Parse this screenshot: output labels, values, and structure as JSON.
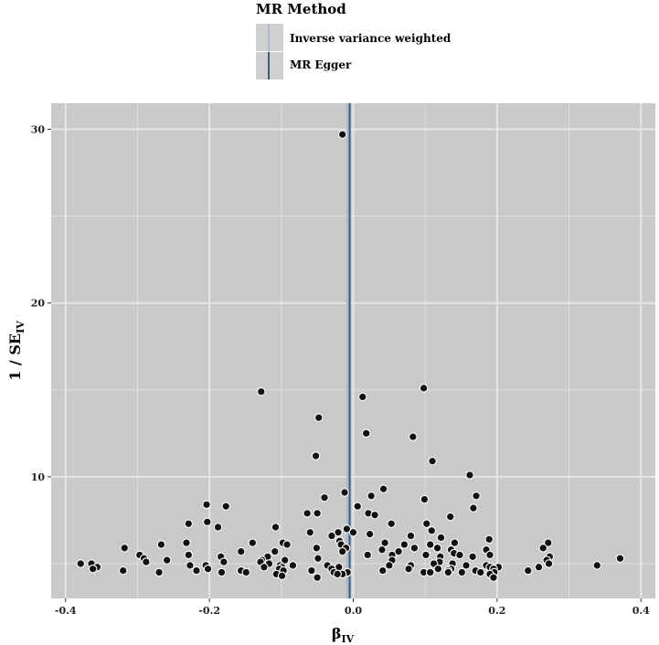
{
  "chart_data": {
    "type": "scatter",
    "title": "",
    "xlabel": "β",
    "xlabel_subscript": "IV",
    "ylabel": "1 / SE",
    "ylabel_subscript": "IV",
    "xlim": [
      -0.42,
      0.42
    ],
    "ylim": [
      3,
      31.5
    ],
    "x_ticks": [
      -0.4,
      -0.2,
      0.0,
      0.2,
      0.4
    ],
    "x_tick_labels": [
      "-0.4",
      "-0.2",
      "0.0",
      "0.2",
      "0.4"
    ],
    "y_ticks": [
      10,
      20,
      30
    ],
    "y_tick_labels": [
      "10",
      "20",
      "30"
    ],
    "grid": true,
    "legend": {
      "title": "MR Method",
      "placement": "top",
      "entries": [
        {
          "label": "Inverse variance weighted",
          "color": "#a9bdd4"
        },
        {
          "label": "MR Egger",
          "color": "#3b5a7e"
        }
      ]
    },
    "lines": [
      {
        "name": "Inverse variance weighted",
        "type": "vertical",
        "x": -0.008,
        "color": "#a9bdd4"
      },
      {
        "name": "MR Egger",
        "type": "vertical",
        "x": -0.005,
        "color": "#3b5a7e"
      }
    ],
    "colors": {
      "panel": "#c9c9c9",
      "grid": "#e6e6e6",
      "point": "#111111",
      "point_outline": "#f5f5f5"
    },
    "series": [
      {
        "points": [
          [
            -0.015,
            29.7
          ],
          [
            -0.128,
            14.9
          ],
          [
            0.098,
            15.1
          ],
          [
            0.013,
            14.6
          ],
          [
            -0.048,
            13.4
          ],
          [
            0.018,
            12.5
          ],
          [
            0.083,
            12.3
          ],
          [
            -0.052,
            11.2
          ],
          [
            0.11,
            10.9
          ],
          [
            0.162,
            10.1
          ],
          [
            0.042,
            9.3
          ],
          [
            -0.012,
            9.1
          ],
          [
            0.025,
            8.9
          ],
          [
            0.171,
            8.9
          ],
          [
            -0.04,
            8.8
          ],
          [
            0.099,
            8.7
          ],
          [
            -0.204,
            8.4
          ],
          [
            -0.177,
            8.3
          ],
          [
            0.006,
            8.3
          ],
          [
            0.167,
            8.2
          ],
          [
            -0.064,
            7.9
          ],
          [
            -0.05,
            7.9
          ],
          [
            0.021,
            7.9
          ],
          [
            0.03,
            7.8
          ],
          [
            0.135,
            7.7
          ],
          [
            -0.203,
            7.4
          ],
          [
            -0.229,
            7.3
          ],
          [
            0.053,
            7.3
          ],
          [
            0.102,
            7.3
          ],
          [
            -0.188,
            7.1
          ],
          [
            -0.108,
            7.1
          ],
          [
            -0.009,
            7.0
          ],
          [
            0.109,
            6.9
          ],
          [
            -0.06,
            6.8
          ],
          [
            -0.021,
            6.8
          ],
          [
            0.0,
            6.8
          ],
          [
            0.023,
            6.7
          ],
          [
            -0.03,
            6.6
          ],
          [
            0.08,
            6.6
          ],
          [
            0.122,
            6.5
          ],
          [
            0.189,
            6.4
          ],
          [
            -0.019,
            6.3
          ],
          [
            -0.232,
            6.2
          ],
          [
            -0.14,
            6.2
          ],
          [
            -0.098,
            6.2
          ],
          [
            0.044,
            6.2
          ],
          [
            0.141,
            6.2
          ],
          [
            0.271,
            6.2
          ],
          [
            -0.267,
            6.1
          ],
          [
            -0.092,
            6.1
          ],
          [
            -0.017,
            6.1
          ],
          [
            0.071,
            6.1
          ],
          [
            0.107,
            6.1
          ],
          [
            -0.318,
            5.9
          ],
          [
            -0.051,
            5.9
          ],
          [
            -0.01,
            5.9
          ],
          [
            0.085,
            5.9
          ],
          [
            0.117,
            5.9
          ],
          [
            0.264,
            5.9
          ],
          [
            0.04,
            5.8
          ],
          [
            0.136,
            5.8
          ],
          [
            0.185,
            5.8
          ],
          [
            -0.156,
            5.7
          ],
          [
            -0.109,
            5.7
          ],
          [
            -0.015,
            5.7
          ],
          [
            0.063,
            5.7
          ],
          [
            0.14,
            5.6
          ],
          [
            -0.297,
            5.5
          ],
          [
            -0.229,
            5.5
          ],
          [
            0.02,
            5.5
          ],
          [
            0.054,
            5.5
          ],
          [
            0.101,
            5.5
          ],
          [
            0.148,
            5.5
          ],
          [
            0.19,
            5.5
          ],
          [
            -0.184,
            5.4
          ],
          [
            -0.119,
            5.4
          ],
          [
            0.121,
            5.4
          ],
          [
            0.166,
            5.4
          ],
          [
            0.273,
            5.4
          ],
          [
            -0.291,
            5.3
          ],
          [
            -0.049,
            5.3
          ],
          [
            0.371,
            5.3
          ],
          [
            -0.259,
            5.2
          ],
          [
            -0.127,
            5.2
          ],
          [
            -0.095,
            5.2
          ],
          [
            0.054,
            5.2
          ],
          [
            0.269,
            5.2
          ],
          [
            -0.288,
            5.1
          ],
          [
            -0.18,
            5.1
          ],
          [
            -0.129,
            5.1
          ],
          [
            0.12,
            5.1
          ],
          [
            -0.379,
            5.0
          ],
          [
            -0.364,
            5.0
          ],
          [
            -0.117,
            5.0
          ],
          [
            0.112,
            5.0
          ],
          [
            0.138,
            5.0
          ],
          [
            0.272,
            5.0
          ],
          [
            0.339,
            4.9
          ],
          [
            -0.227,
            4.9
          ],
          [
            -0.205,
            4.9
          ],
          [
            -0.102,
            4.9
          ],
          [
            -0.084,
            4.9
          ],
          [
            -0.036,
            4.9
          ],
          [
            0.05,
            4.9
          ],
          [
            0.08,
            4.9
          ],
          [
            0.157,
            4.9
          ],
          [
            0.185,
            4.9
          ],
          [
            -0.356,
            4.8
          ],
          [
            -0.124,
            4.8
          ],
          [
            -0.099,
            4.8
          ],
          [
            -0.02,
            4.8
          ],
          [
            0.19,
            4.8
          ],
          [
            0.202,
            4.8
          ],
          [
            0.258,
            4.8
          ],
          [
            -0.362,
            4.7
          ],
          [
            -0.202,
            4.7
          ],
          [
            -0.103,
            4.7
          ],
          [
            -0.03,
            4.7
          ],
          [
            0.077,
            4.7
          ],
          [
            0.136,
            4.7
          ],
          [
            0.195,
            4.7
          ],
          [
            -0.32,
            4.6
          ],
          [
            -0.218,
            4.6
          ],
          [
            -0.156,
            4.6
          ],
          [
            -0.097,
            4.6
          ],
          [
            -0.058,
            4.6
          ],
          [
            0.041,
            4.6
          ],
          [
            0.132,
            4.6
          ],
          [
            0.17,
            4.6
          ],
          [
            0.243,
            4.6
          ],
          [
            -0.27,
            4.5
          ],
          [
            -0.183,
            4.5
          ],
          [
            -0.149,
            4.5
          ],
          [
            -0.027,
            4.5
          ],
          [
            -0.008,
            4.5
          ],
          [
            0.098,
            4.5
          ],
          [
            0.107,
            4.5
          ],
          [
            0.132,
            4.5
          ],
          [
            0.151,
            4.5
          ],
          [
            0.177,
            4.5
          ],
          [
            0.196,
            4.5
          ],
          [
            -0.107,
            4.4
          ],
          [
            -0.015,
            4.4
          ],
          [
            0.19,
            4.4
          ],
          [
            -0.05,
            4.2
          ],
          [
            0.195,
            4.2
          ],
          [
            -0.099,
            4.3
          ],
          [
            -0.022,
            4.4
          ],
          [
            0.118,
            4.7
          ]
        ]
      }
    ]
  }
}
